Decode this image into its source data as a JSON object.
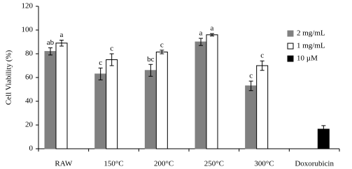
{
  "chart_data": {
    "type": "bar",
    "ylabel": "Cell Viability (%)",
    "categories": [
      "RAW",
      "150°C",
      "200°C",
      "250°C",
      "300°C",
      "Doxorubicin"
    ],
    "ylim": [
      0,
      120
    ],
    "yticks": [
      0,
      20,
      40,
      60,
      80,
      100,
      120
    ],
    "legend": "upper right",
    "series": [
      {
        "name": "2 mg/mL",
        "color": "#808080",
        "values": [
          82,
          63,
          66,
          90,
          53,
          null
        ],
        "errors": [
          3,
          5,
          5,
          3,
          4,
          null
        ],
        "annotations": [
          "ab",
          "c",
          "bc",
          "a",
          "c",
          null
        ]
      },
      {
        "name": "1 mg/mL",
        "color": "#ffffff",
        "values": [
          89,
          75,
          81.5,
          96,
          70,
          null
        ],
        "errors": [
          2.5,
          5,
          1.5,
          1,
          4,
          null
        ],
        "annotations": [
          "a",
          "c",
          "c",
          "a",
          "c",
          null
        ]
      },
      {
        "name": "10 µM",
        "color": "#000000",
        "values": [
          null,
          null,
          null,
          null,
          null,
          16.5
        ],
        "errors": [
          null,
          null,
          null,
          null,
          null,
          3
        ],
        "annotations": [
          null,
          null,
          null,
          null,
          null,
          null
        ]
      }
    ]
  }
}
